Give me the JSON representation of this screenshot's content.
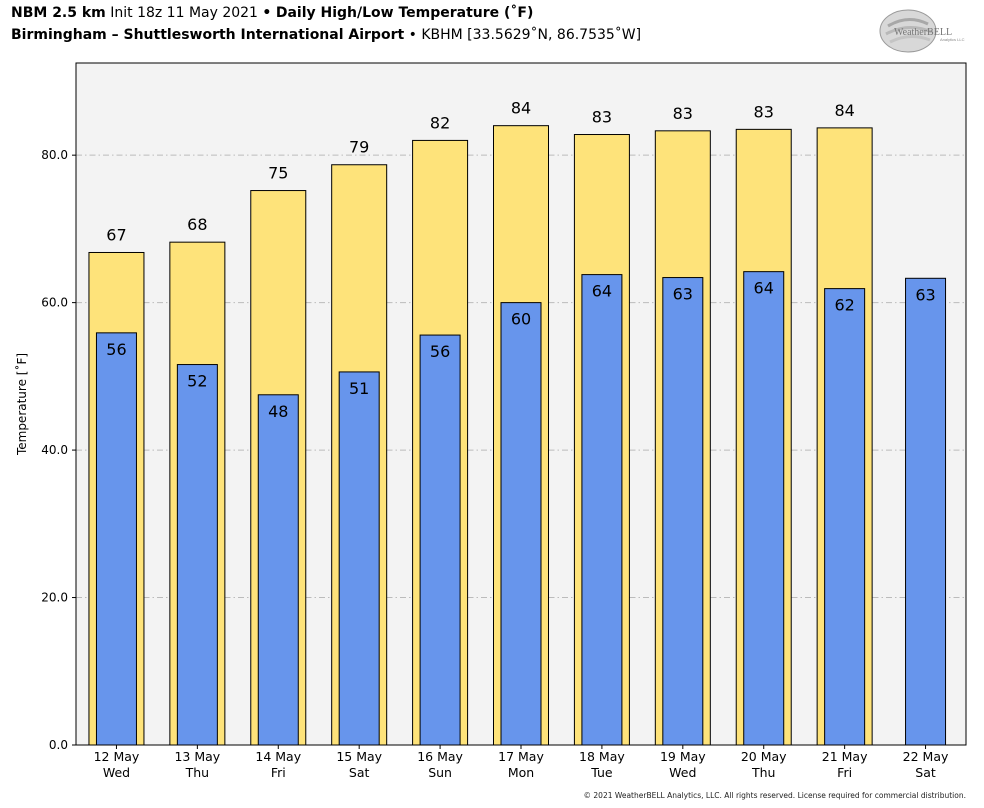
{
  "header": {
    "model": "NBM 2.5 km",
    "init": "Init 18z 11 May 2021",
    "product": "Daily High/Low Temperature (˚F)",
    "station": "Birmingham – Shuttlesworth International Airport",
    "station_code": "KBHM [33.5629˚N, 86.7535˚W]",
    "bullet": "•"
  },
  "logo": {
    "text": "WeatherBELL",
    "subtext": "Analytics LLC"
  },
  "colors": {
    "high_fill": "#fee37a",
    "low_fill": "#6795ec",
    "plot_bg": "#f3f3f3",
    "grid": "#bbbbbb"
  },
  "chart_data": {
    "type": "bar",
    "ylabel": "Temperature [˚F]",
    "ylim": [
      0,
      92.5
    ],
    "yticks": [
      0.0,
      20.0,
      40.0,
      60.0,
      80.0
    ],
    "ytick_labels": [
      "0.0",
      "20.0",
      "40.0",
      "60.0",
      "80.0"
    ],
    "grid": true,
    "categories": [
      [
        "12 May",
        "Wed"
      ],
      [
        "13 May",
        "Thu"
      ],
      [
        "14 May",
        "Fri"
      ],
      [
        "15 May",
        "Sat"
      ],
      [
        "16 May",
        "Sun"
      ],
      [
        "17 May",
        "Mon"
      ],
      [
        "18 May",
        "Tue"
      ],
      [
        "19 May",
        "Wed"
      ],
      [
        "20 May",
        "Thu"
      ],
      [
        "21 May",
        "Fri"
      ],
      [
        "22 May",
        "Sat"
      ]
    ],
    "series": [
      {
        "key": "high",
        "values": [
          66.8,
          68.2,
          75.2,
          78.7,
          82.0,
          84.0,
          82.8,
          83.3,
          83.5,
          83.7,
          null
        ],
        "labels": [
          "67",
          "68",
          "75",
          "79",
          "82",
          "84",
          "83",
          "83",
          "83",
          "84",
          ""
        ]
      },
      {
        "key": "low",
        "values": [
          55.9,
          51.6,
          47.5,
          50.6,
          55.6,
          60.0,
          63.8,
          63.4,
          64.2,
          61.9,
          63.3
        ],
        "labels": [
          "56",
          "52",
          "48",
          "51",
          "56",
          "60",
          "64",
          "63",
          "64",
          "62",
          "63"
        ]
      }
    ]
  },
  "footer": {
    "copyright": "© 2021 WeatherBELL Analytics, LLC. All rights reserved. License required for commercial distribution."
  }
}
